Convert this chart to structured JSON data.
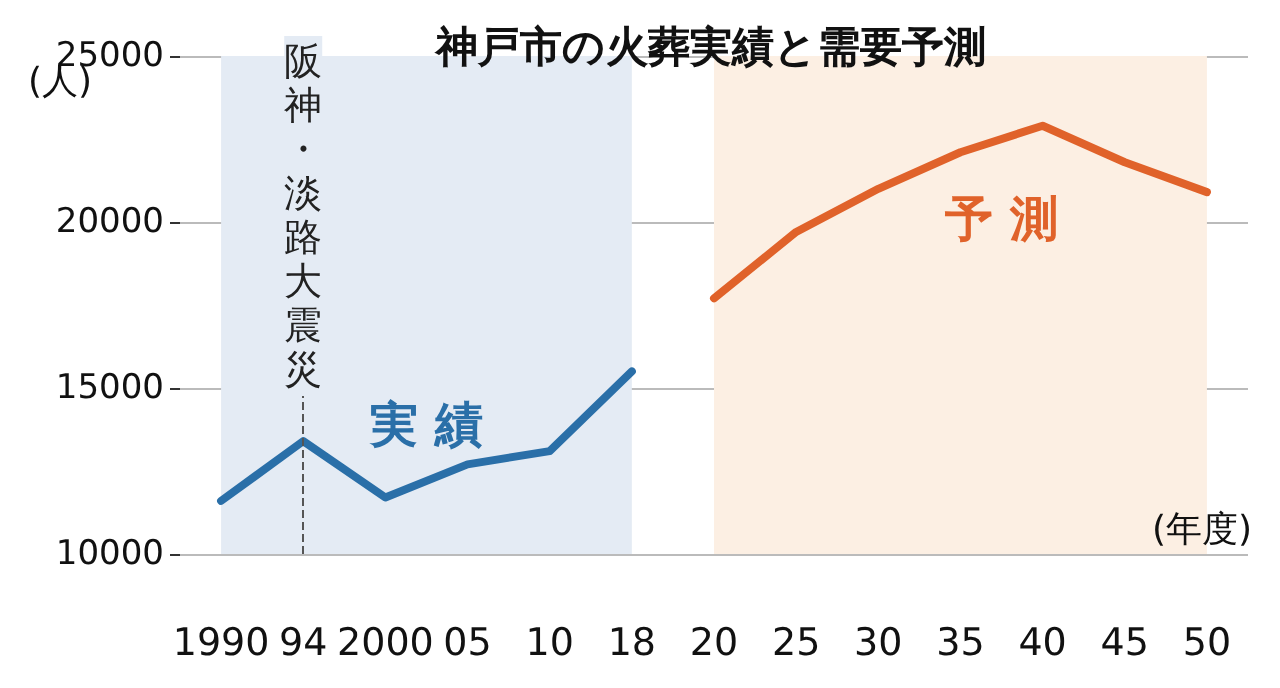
{
  "chart_data": {
    "type": "line",
    "title": "神戸市の火葬実績と需要予測",
    "ylabel": "(人)",
    "xlabel": "(年度)",
    "categories": [
      "1990",
      "94",
      "2000",
      "05",
      "10",
      "18",
      "20",
      "25",
      "30",
      "35",
      "40",
      "45",
      "50"
    ],
    "series": [
      {
        "name": "実 績",
        "color": "#2a6fa8",
        "values": [
          11600,
          13400,
          11700,
          12700,
          13100,
          15500,
          null,
          null,
          null,
          null,
          null,
          null,
          null
        ]
      },
      {
        "name": "予 測",
        "color": "#e0622a",
        "values": [
          null,
          null,
          null,
          null,
          null,
          null,
          17700,
          19700,
          21000,
          22100,
          22900,
          21800,
          20900
        ]
      }
    ],
    "ylim": [
      10000,
      25000
    ],
    "yticks": [
      10000,
      15000,
      20000,
      25000
    ],
    "grid": "y",
    "legend": false,
    "marker": "none",
    "line_style": "solid",
    "ref_lines": [
      {
        "axis": "x",
        "value": "94",
        "label": "阪神・淡路大震災",
        "line_style": "dashed",
        "color": "#555555"
      }
    ],
    "bands": [
      {
        "axis": "x",
        "from": "1990",
        "to": "18",
        "color": "#e4ebf4"
      },
      {
        "axis": "x",
        "from": "20",
        "to": "50",
        "color": "#fcefe3"
      }
    ]
  }
}
